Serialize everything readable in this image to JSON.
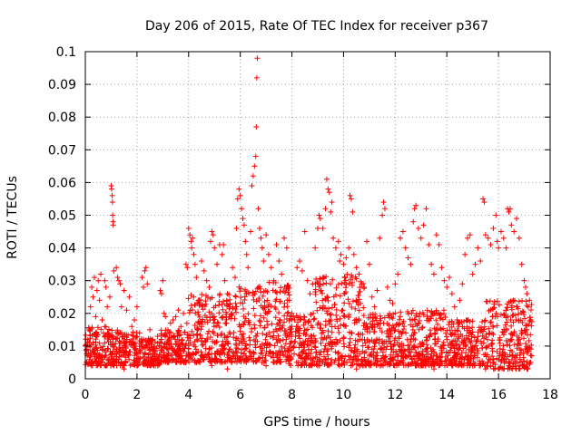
{
  "chart_data": {
    "type": "scatter",
    "title": "Day 206 of 2015, Rate Of TEC Index for receiver p367",
    "xlabel": "GPS time / hours",
    "ylabel": "ROTI / TECUs",
    "xlim": [
      0,
      18
    ],
    "ylim": [
      0,
      0.1
    ],
    "xticks": [
      0,
      2,
      4,
      6,
      8,
      10,
      12,
      14,
      16,
      18
    ],
    "yticks": [
      0,
      0.01,
      0.02,
      0.03,
      0.04,
      0.05,
      0.06,
      0.07,
      0.08,
      0.09,
      0.1
    ],
    "xtick_labels": [
      "0",
      "2",
      "4",
      "6",
      "8",
      "10",
      "12",
      "14",
      "16",
      "18"
    ],
    "ytick_labels": [
      "0",
      "0.01",
      "0.02",
      "0.03",
      "0.04",
      "0.05",
      "0.06",
      "0.07",
      "0.08",
      "0.09",
      "0.1"
    ],
    "grid": true,
    "marker": "+",
    "color": "#ff0000",
    "series": [
      {
        "name": "ROTI",
        "points": [
          [
            0.0,
            0.01
          ],
          [
            0.05,
            0.009
          ],
          [
            0.1,
            0.012
          ],
          [
            0.15,
            0.015
          ],
          [
            0.2,
            0.022
          ],
          [
            0.25,
            0.028
          ],
          [
            0.3,
            0.025
          ],
          [
            0.35,
            0.031
          ],
          [
            0.4,
            0.019
          ],
          [
            0.45,
            0.027
          ],
          [
            0.5,
            0.03
          ],
          [
            0.55,
            0.024
          ],
          [
            0.6,
            0.032
          ],
          [
            0.65,
            0.018
          ],
          [
            0.7,
            0.014
          ],
          [
            0.75,
            0.03
          ],
          [
            0.8,
            0.028
          ],
          [
            0.85,
            0.022
          ],
          [
            0.9,
            0.013
          ],
          [
            0.95,
            0.025
          ],
          [
            1.0,
            0.059
          ],
          [
            1.02,
            0.058
          ],
          [
            1.04,
            0.056
          ],
          [
            1.05,
            0.054
          ],
          [
            1.06,
            0.05
          ],
          [
            1.07,
            0.048
          ],
          [
            1.08,
            0.047
          ],
          [
            1.1,
            0.033
          ],
          [
            1.2,
            0.034
          ],
          [
            1.25,
            0.031
          ],
          [
            1.3,
            0.03
          ],
          [
            1.35,
            0.029
          ],
          [
            1.4,
            0.022
          ],
          [
            1.5,
            0.027
          ],
          [
            1.6,
            0.021
          ],
          [
            1.7,
            0.025
          ],
          [
            1.8,
            0.016
          ],
          [
            1.9,
            0.018
          ],
          [
            2.0,
            0.022
          ],
          [
            2.1,
            0.014
          ],
          [
            2.2,
            0.031
          ],
          [
            2.25,
            0.028
          ],
          [
            2.3,
            0.033
          ],
          [
            2.35,
            0.034
          ],
          [
            2.4,
            0.029
          ],
          [
            2.5,
            0.015
          ],
          [
            2.6,
            0.012
          ],
          [
            2.8,
            0.013
          ],
          [
            2.9,
            0.027
          ],
          [
            2.95,
            0.026
          ],
          [
            3.0,
            0.03
          ],
          [
            3.05,
            0.02
          ],
          [
            3.1,
            0.019
          ],
          [
            3.2,
            0.015
          ],
          [
            3.3,
            0.017
          ],
          [
            3.4,
            0.018
          ],
          [
            3.5,
            0.019
          ],
          [
            3.6,
            0.021
          ],
          [
            3.7,
            0.016
          ],
          [
            3.8,
            0.02
          ],
          [
            3.9,
            0.035
          ],
          [
            3.95,
            0.034
          ],
          [
            4.0,
            0.046
          ],
          [
            4.05,
            0.044
          ],
          [
            4.1,
            0.042
          ],
          [
            4.12,
            0.04
          ],
          [
            4.15,
            0.043
          ],
          [
            4.2,
            0.038
          ],
          [
            4.25,
            0.035
          ],
          [
            4.3,
            0.031
          ],
          [
            4.4,
            0.024
          ],
          [
            4.5,
            0.036
          ],
          [
            4.6,
            0.033
          ],
          [
            4.7,
            0.03
          ],
          [
            4.8,
            0.028
          ],
          [
            4.85,
            0.042
          ],
          [
            4.9,
            0.045
          ],
          [
            4.95,
            0.044
          ],
          [
            5.0,
            0.04
          ],
          [
            5.1,
            0.035
          ],
          [
            5.2,
            0.041
          ],
          [
            5.3,
            0.038
          ],
          [
            5.35,
            0.041
          ],
          [
            5.4,
            0.03
          ],
          [
            5.5,
            0.026
          ],
          [
            5.6,
            0.023
          ],
          [
            5.7,
            0.034
          ],
          [
            5.8,
            0.031
          ],
          [
            5.85,
            0.046
          ],
          [
            5.9,
            0.055
          ],
          [
            5.95,
            0.058
          ],
          [
            6.0,
            0.056
          ],
          [
            6.05,
            0.052
          ],
          [
            6.1,
            0.049
          ],
          [
            6.15,
            0.047
          ],
          [
            6.2,
            0.042
          ],
          [
            6.25,
            0.038
          ],
          [
            6.3,
            0.034
          ],
          [
            6.4,
            0.045
          ],
          [
            6.45,
            0.059
          ],
          [
            6.5,
            0.062
          ],
          [
            6.55,
            0.065
          ],
          [
            6.6,
            0.068
          ],
          [
            6.62,
            0.077
          ],
          [
            6.64,
            0.092
          ],
          [
            6.66,
            0.098
          ],
          [
            6.7,
            0.052
          ],
          [
            6.75,
            0.046
          ],
          [
            6.8,
            0.043
          ],
          [
            6.85,
            0.04
          ],
          [
            6.9,
            0.036
          ],
          [
            7.0,
            0.044
          ],
          [
            7.1,
            0.038
          ],
          [
            7.2,
            0.034
          ],
          [
            7.3,
            0.03
          ],
          [
            7.4,
            0.041
          ],
          [
            7.5,
            0.036
          ],
          [
            7.6,
            0.032
          ],
          [
            7.7,
            0.043
          ],
          [
            7.8,
            0.04
          ],
          [
            7.9,
            0.024
          ],
          [
            8.0,
            0.02
          ],
          [
            8.1,
            0.018
          ],
          [
            8.2,
            0.034
          ],
          [
            8.3,
            0.036
          ],
          [
            8.4,
            0.033
          ],
          [
            8.5,
            0.045
          ],
          [
            8.6,
            0.03
          ],
          [
            8.7,
            0.026
          ],
          [
            8.8,
            0.029
          ],
          [
            8.9,
            0.04
          ],
          [
            9.0,
            0.046
          ],
          [
            9.05,
            0.05
          ],
          [
            9.1,
            0.049
          ],
          [
            9.2,
            0.046
          ],
          [
            9.3,
            0.052
          ],
          [
            9.35,
            0.061
          ],
          [
            9.4,
            0.058
          ],
          [
            9.45,
            0.057
          ],
          [
            9.5,
            0.051
          ],
          [
            9.55,
            0.054
          ],
          [
            9.6,
            0.043
          ],
          [
            9.7,
            0.04
          ],
          [
            9.8,
            0.042
          ],
          [
            9.85,
            0.036
          ],
          [
            9.9,
            0.038
          ],
          [
            10.0,
            0.035
          ],
          [
            10.1,
            0.037
          ],
          [
            10.2,
            0.04
          ],
          [
            10.25,
            0.056
          ],
          [
            10.3,
            0.055
          ],
          [
            10.35,
            0.051
          ],
          [
            10.4,
            0.038
          ],
          [
            10.5,
            0.034
          ],
          [
            10.6,
            0.032
          ],
          [
            10.7,
            0.029
          ],
          [
            10.8,
            0.028
          ],
          [
            10.9,
            0.042
          ],
          [
            11.0,
            0.035
          ],
          [
            11.1,
            0.025
          ],
          [
            11.2,
            0.022
          ],
          [
            11.3,
            0.027
          ],
          [
            11.4,
            0.043
          ],
          [
            11.5,
            0.05
          ],
          [
            11.55,
            0.054
          ],
          [
            11.6,
            0.052
          ],
          [
            11.7,
            0.028
          ],
          [
            11.8,
            0.024
          ],
          [
            11.9,
            0.023
          ],
          [
            12.0,
            0.029
          ],
          [
            12.1,
            0.032
          ],
          [
            12.2,
            0.043
          ],
          [
            12.3,
            0.045
          ],
          [
            12.4,
            0.04
          ],
          [
            12.5,
            0.037
          ],
          [
            12.6,
            0.035
          ],
          [
            12.7,
            0.048
          ],
          [
            12.75,
            0.052
          ],
          [
            12.8,
            0.053
          ],
          [
            12.9,
            0.046
          ],
          [
            13.0,
            0.043
          ],
          [
            13.1,
            0.047
          ],
          [
            13.2,
            0.052
          ],
          [
            13.3,
            0.041
          ],
          [
            13.4,
            0.035
          ],
          [
            13.5,
            0.032
          ],
          [
            13.6,
            0.044
          ],
          [
            13.7,
            0.041
          ],
          [
            13.8,
            0.034
          ],
          [
            13.9,
            0.03
          ],
          [
            14.0,
            0.028
          ],
          [
            14.1,
            0.031
          ],
          [
            14.2,
            0.026
          ],
          [
            14.3,
            0.022
          ],
          [
            14.4,
            0.018
          ],
          [
            14.5,
            0.024
          ],
          [
            14.6,
            0.029
          ],
          [
            14.7,
            0.038
          ],
          [
            14.8,
            0.043
          ],
          [
            14.9,
            0.044
          ],
          [
            15.0,
            0.032
          ],
          [
            15.1,
            0.035
          ],
          [
            15.2,
            0.04
          ],
          [
            15.3,
            0.036
          ],
          [
            15.4,
            0.055
          ],
          [
            15.45,
            0.054
          ],
          [
            15.5,
            0.044
          ],
          [
            15.6,
            0.043
          ],
          [
            15.7,
            0.041
          ],
          [
            15.8,
            0.046
          ],
          [
            15.9,
            0.05
          ],
          [
            15.95,
            0.042
          ],
          [
            16.0,
            0.04
          ],
          [
            16.1,
            0.045
          ],
          [
            16.2,
            0.043
          ],
          [
            16.3,
            0.04
          ],
          [
            16.35,
            0.052
          ],
          [
            16.4,
            0.051
          ],
          [
            16.45,
            0.052
          ],
          [
            16.5,
            0.047
          ],
          [
            16.6,
            0.045
          ],
          [
            16.7,
            0.049
          ],
          [
            16.8,
            0.043
          ],
          [
            16.9,
            0.035
          ],
          [
            17.0,
            0.03
          ],
          [
            17.05,
            0.028
          ],
          [
            17.1,
            0.026
          ],
          [
            17.15,
            0.022
          ],
          [
            17.2,
            0.024
          ],
          [
            17.25,
            0.018
          ],
          [
            0.3,
            0.011
          ],
          [
            0.6,
            0.007
          ],
          [
            1.1,
            0.006
          ],
          [
            1.6,
            0.008
          ],
          [
            2.1,
            0.005
          ],
          [
            2.6,
            0.006
          ],
          [
            3.2,
            0.007
          ],
          [
            3.7,
            0.005
          ],
          [
            4.3,
            0.008
          ],
          [
            4.8,
            0.006
          ],
          [
            5.3,
            0.005
          ],
          [
            5.8,
            0.007
          ],
          [
            6.3,
            0.006
          ],
          [
            6.8,
            0.008
          ],
          [
            7.3,
            0.005
          ],
          [
            7.8,
            0.006
          ],
          [
            8.3,
            0.007
          ],
          [
            8.8,
            0.005
          ],
          [
            9.3,
            0.006
          ],
          [
            9.8,
            0.008
          ],
          [
            10.3,
            0.005
          ],
          [
            10.8,
            0.006
          ],
          [
            11.3,
            0.007
          ],
          [
            11.8,
            0.006
          ],
          [
            12.3,
            0.005
          ],
          [
            12.8,
            0.007
          ],
          [
            13.3,
            0.006
          ],
          [
            13.8,
            0.008
          ],
          [
            14.3,
            0.005
          ],
          [
            14.8,
            0.006
          ],
          [
            15.3,
            0.004
          ],
          [
            15.8,
            0.005
          ],
          [
            16.3,
            0.006
          ],
          [
            16.8,
            0.004
          ],
          [
            17.2,
            0.005
          ],
          [
            0.8,
            0.004
          ],
          [
            2.8,
            0.004
          ],
          [
            4.9,
            0.004
          ],
          [
            7.0,
            0.004
          ],
          [
            9.0,
            0.004
          ],
          [
            11.0,
            0.004
          ],
          [
            13.0,
            0.004
          ],
          [
            15.0,
            0.004
          ],
          [
            17.0,
            0.004
          ],
          [
            15.5,
            0.003
          ],
          [
            16.0,
            0.003
          ],
          [
            1.5,
            0.003
          ],
          [
            5.5,
            0.003
          ],
          [
            10.5,
            0.003
          ],
          [
            13.5,
            0.003
          ]
        ]
      }
    ],
    "dense_bands": [
      {
        "x": [
          0.0,
          1.0
        ],
        "y": [
          0.004,
          0.016
        ]
      },
      {
        "x": [
          1.0,
          2.1
        ],
        "y": [
          0.004,
          0.015
        ]
      },
      {
        "x": [
          2.1,
          2.9
        ],
        "y": [
          0.004,
          0.013
        ]
      },
      {
        "x": [
          2.9,
          3.9
        ],
        "y": [
          0.005,
          0.015
        ]
      },
      {
        "x": [
          3.9,
          5.9
        ],
        "y": [
          0.005,
          0.026
        ]
      },
      {
        "x": [
          5.9,
          7.9
        ],
        "y": [
          0.005,
          0.03
        ]
      },
      {
        "x": [
          7.9,
          8.9
        ],
        "y": [
          0.004,
          0.02
        ]
      },
      {
        "x": [
          8.9,
          10.8
        ],
        "y": [
          0.004,
          0.032
        ]
      },
      {
        "x": [
          10.8,
          12.0
        ],
        "y": [
          0.004,
          0.02
        ]
      },
      {
        "x": [
          12.0,
          14.0
        ],
        "y": [
          0.004,
          0.021
        ]
      },
      {
        "x": [
          14.0,
          15.5
        ],
        "y": [
          0.004,
          0.018
        ]
      },
      {
        "x": [
          15.5,
          17.3
        ],
        "y": [
          0.003,
          0.024
        ]
      }
    ]
  }
}
